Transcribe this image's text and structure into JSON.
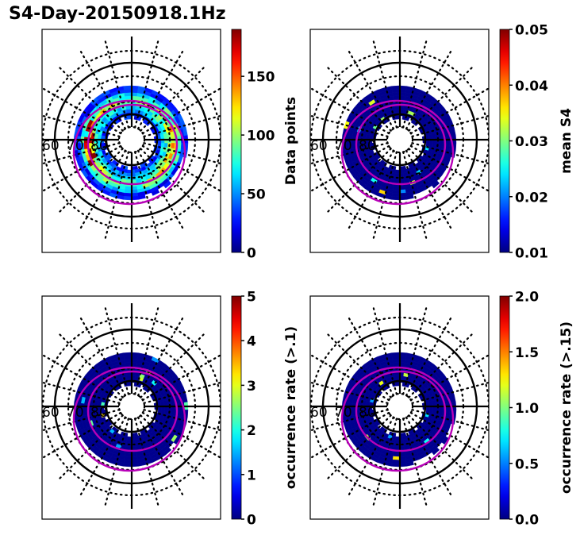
{
  "figure": {
    "title": "S4-Day-20150918.1Hz"
  },
  "chart_data": [
    {
      "type": "heatmap",
      "projection": "polar (magnetic latitude / local time)",
      "title": "",
      "colormap": "jet",
      "colorbar": {
        "label": "Data points",
        "range": [
          0,
          190
        ],
        "ticks": [
          0,
          50,
          100,
          150
        ],
        "tick_labels": [
          "0",
          "50",
          "100",
          "150"
        ]
      },
      "latitude_labels": [
        "60",
        "70",
        "80"
      ],
      "ring_summary": "annular band ~55-80 deg lat; mostly 20-120 counts, peaks ~170-190 on dawn/dusk flanks",
      "value_level": 0.45
    },
    {
      "type": "heatmap",
      "projection": "polar (magnetic latitude / local time)",
      "title": "",
      "colormap": "jet",
      "colorbar": {
        "label": "mean S4",
        "range": [
          0.01,
          0.05
        ],
        "ticks": [
          0.01,
          0.02,
          0.03,
          0.04,
          0.05
        ],
        "tick_labels": [
          "0.01",
          "0.02",
          "0.03",
          "0.04",
          "0.05"
        ]
      },
      "latitude_labels": [
        "60",
        "70",
        "80"
      ],
      "ring_summary": "nearly uniform ~0.01 with isolated cells ~0.02-0.04",
      "value_level": 0.0
    },
    {
      "type": "heatmap",
      "projection": "polar (magnetic latitude / local time)",
      "title": "",
      "colormap": "jet",
      "colorbar": {
        "label": "occurrence rate (>.1)",
        "range": [
          0,
          5
        ],
        "ticks": [
          0,
          1,
          2,
          3,
          4,
          5
        ],
        "tick_labels": [
          "0",
          "1",
          "2",
          "3",
          "4",
          "5"
        ]
      },
      "latitude_labels": [
        "60",
        "70",
        "80"
      ],
      "ring_summary": "mostly 0 with few cells ~1-3 and one ~5",
      "value_level": 0.0
    },
    {
      "type": "heatmap",
      "projection": "polar (magnetic latitude / local time)",
      "title": "",
      "colormap": "jet",
      "colorbar": {
        "label": "occurrence rate (>.15)",
        "range": [
          0.0,
          2.0
        ],
        "ticks": [
          0.0,
          0.5,
          1.0,
          1.5,
          2.0
        ],
        "tick_labels": [
          "0.0",
          "0.5",
          "1.0",
          "1.5",
          "2.0"
        ]
      },
      "latitude_labels": [
        "60",
        "70",
        "80"
      ],
      "ring_summary": "mostly 0 with one cell ~1.1 and one ~2.0",
      "value_level": 0.0
    }
  ],
  "colors": {
    "auroral_oval": "#b800b8",
    "grid": "#000000"
  }
}
